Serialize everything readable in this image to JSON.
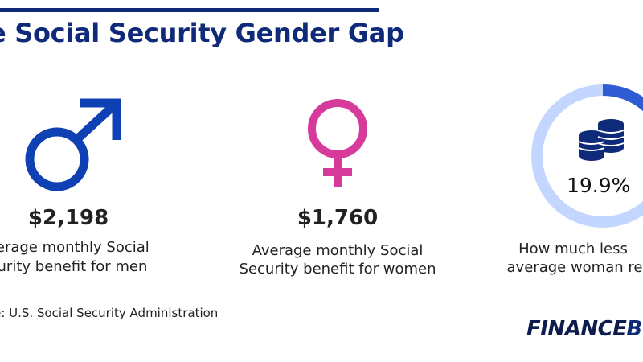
{
  "header": {
    "title": "e Social Security Gender Gap"
  },
  "men": {
    "icon": "male-symbol-icon",
    "color": "#0f40b4",
    "amount": "$2,198",
    "caption_line1": "verage monthly Social",
    "caption_line2": "curity benefit for men"
  },
  "women": {
    "icon": "female-symbol-icon",
    "color": "#d63a9a",
    "amount": "$1,760",
    "caption_line1": "Average monthly Social",
    "caption_line2": "Security benefit for women"
  },
  "gap": {
    "icon": "coin-stack-icon",
    "percent": "19.9%",
    "ring_fill_fraction": 0.199,
    "ring_color": "#c3d6ff",
    "ring_accent_color": "#2f5bd3",
    "caption_line1": "How much less",
    "caption_line2": "average woman re"
  },
  "footer": {
    "source": "rce: U.S. Social Security Administration",
    "brand_text": "FINANCE",
    "brand_mark": "B"
  }
}
